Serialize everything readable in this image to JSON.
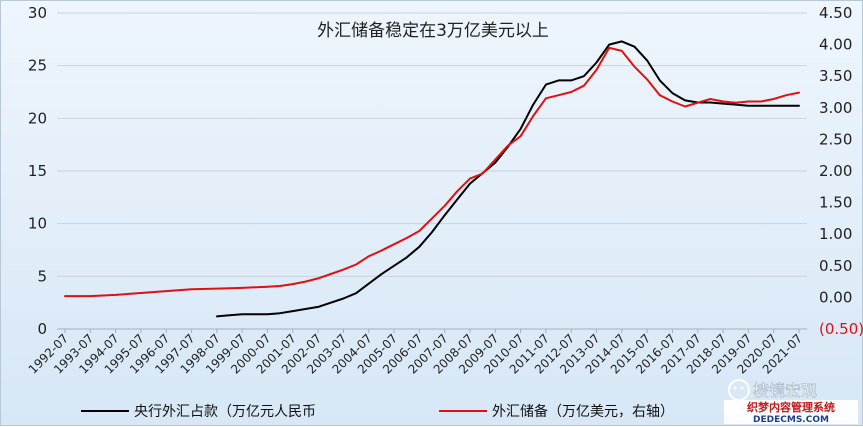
{
  "chart_data": {
    "type": "line",
    "title": "外汇储备稳定在3万亿美元以上",
    "x_ticks": [
      "1992-07",
      "1993-07",
      "1994-07",
      "1995-07",
      "1996-07",
      "1997-07",
      "1998-07",
      "1999-07",
      "2000-07",
      "2001-07",
      "2002-07",
      "2003-07",
      "2004-07",
      "2005-07",
      "2006-07",
      "2007-07",
      "2008-07",
      "2009-07",
      "2010-07",
      "2011-07",
      "2012-07",
      "2013-07",
      "2014-07",
      "2015-07",
      "2016-07",
      "2017-07",
      "2018-07",
      "2019-07",
      "2020-07",
      "2021-07"
    ],
    "y_left": {
      "ticks": [
        "30",
        "25",
        "20",
        "15",
        "10",
        "5",
        "0"
      ],
      "ylim": [
        0,
        30
      ]
    },
    "y_right": {
      "ticks": [
        "4.50",
        "4.00",
        "3.50",
        "3.00",
        "2.50",
        "2.00",
        "1.50",
        "1.00",
        "0.50",
        "0.00",
        "(0.50)"
      ],
      "ylim": [
        -0.5,
        4.5
      ]
    },
    "grid": "horizontal",
    "legend_position": "bottom",
    "series": [
      {
        "name": "央行外汇占款（万亿元人民币",
        "axis": "left",
        "color": "#000000",
        "x": [
          1998.5,
          1999.0,
          1999.5,
          2000.0,
          2000.5,
          2001.0,
          2001.5,
          2002.0,
          2002.5,
          2003.0,
          2003.5,
          2004.0,
          2004.5,
          2005.0,
          2005.5,
          2006.0,
          2006.5,
          2007.0,
          2007.5,
          2008.0,
          2008.5,
          2009.0,
          2009.5,
          2010.0,
          2010.5,
          2011.0,
          2011.5,
          2012.0,
          2012.5,
          2013.0,
          2013.5,
          2014.0,
          2014.5,
          2015.0,
          2015.5,
          2016.0,
          2016.5,
          2017.0,
          2017.5,
          2018.0,
          2018.5,
          2019.0,
          2019.5,
          2020.0,
          2020.5,
          2021.0,
          2021.5
        ],
        "y": [
          1.2,
          1.3,
          1.4,
          1.4,
          1.4,
          1.5,
          1.7,
          1.9,
          2.1,
          2.5,
          2.9,
          3.4,
          4.3,
          5.2,
          6.0,
          6.8,
          7.8,
          9.2,
          10.8,
          12.3,
          13.8,
          14.8,
          15.8,
          17.3,
          19.0,
          21.3,
          23.2,
          23.6,
          23.6,
          24.0,
          25.3,
          27.0,
          27.3,
          26.8,
          25.5,
          23.6,
          22.4,
          21.7,
          21.5,
          21.5,
          21.4,
          21.3,
          21.2,
          21.2,
          21.2,
          21.2,
          21.2
        ]
      },
      {
        "name": "外汇储备（万亿美元，右轴）",
        "axis": "right",
        "color": "#e01010",
        "x": [
          1992.5,
          1993.5,
          1994.5,
          1995.5,
          1996.5,
          1997.5,
          1998.5,
          1999.5,
          2000.5,
          2001.0,
          2001.5,
          2002.0,
          2002.5,
          2003.0,
          2003.5,
          2004.0,
          2004.5,
          2005.0,
          2005.5,
          2006.0,
          2006.5,
          2007.0,
          2007.5,
          2008.0,
          2008.5,
          2009.0,
          2009.5,
          2010.0,
          2010.5,
          2011.0,
          2011.5,
          2012.0,
          2012.5,
          2013.0,
          2013.5,
          2014.0,
          2014.5,
          2015.0,
          2015.5,
          2016.0,
          2016.5,
          2017.0,
          2017.5,
          2018.0,
          2018.5,
          2019.0,
          2019.5,
          2020.0,
          2020.5,
          2021.0,
          2021.5
        ],
        "y": [
          0.02,
          0.02,
          0.04,
          0.07,
          0.1,
          0.13,
          0.14,
          0.15,
          0.17,
          0.18,
          0.21,
          0.25,
          0.3,
          0.37,
          0.44,
          0.52,
          0.65,
          0.74,
          0.84,
          0.94,
          1.05,
          1.25,
          1.45,
          1.68,
          1.88,
          1.96,
          2.18,
          2.4,
          2.55,
          2.87,
          3.15,
          3.2,
          3.25,
          3.35,
          3.6,
          3.95,
          3.9,
          3.65,
          3.45,
          3.2,
          3.1,
          3.02,
          3.08,
          3.14,
          3.1,
          3.08,
          3.1,
          3.1,
          3.14,
          3.2,
          3.24
        ]
      }
    ]
  },
  "watermark": {
    "brand": "棱镜宏观",
    "cms_name": "织梦内容管理系统",
    "cms_url": "DEDECMS.COM"
  }
}
